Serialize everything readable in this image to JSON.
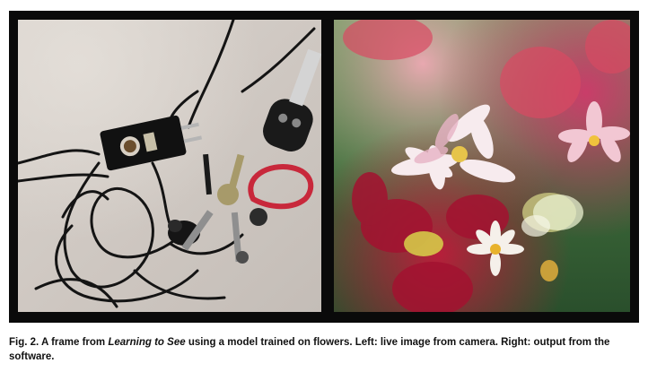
{
  "figure": {
    "left_image": {
      "description_icon": "keys-charger-cables-photo"
    },
    "right_image": {
      "description_icon": "generated-flowers-image"
    }
  },
  "caption": {
    "label": "Fig. 2.",
    "text_before": " A frame from ",
    "title": "Learning to See",
    "text_after": " using a model trained on flowers. Left: live image from camera. Right: output from the software."
  },
  "colors": {
    "panel_bg": "#0a0a0a",
    "caption_text": "#111111"
  }
}
